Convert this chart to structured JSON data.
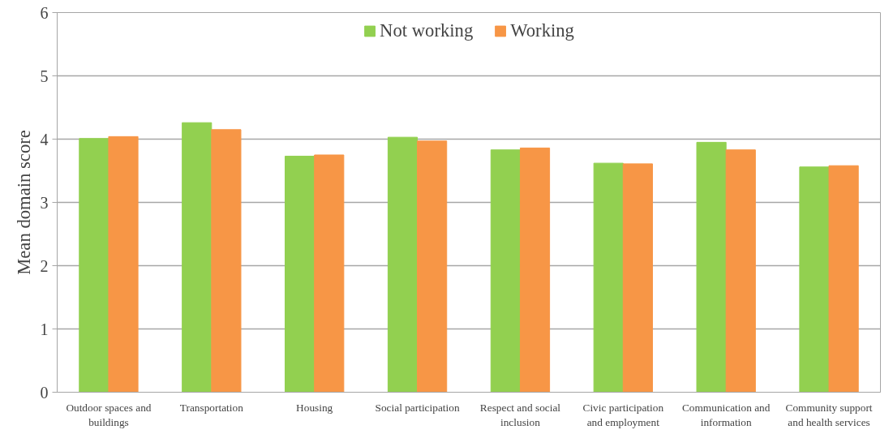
{
  "chart_data": {
    "type": "bar",
    "ylabel": "Mean domain score",
    "categories": [
      "Outdoor spaces and buildings",
      "Transportation",
      "Housing",
      "Social participation",
      "Respect and social inclusion",
      "Civic participation and employment",
      "Communication and information",
      "Community support and health services"
    ],
    "series": [
      {
        "name": "Not working",
        "color": "#92d050",
        "values": [
          4.01,
          4.26,
          3.73,
          4.03,
          3.83,
          3.62,
          3.95,
          3.56
        ]
      },
      {
        "name": "Working",
        "color": "#f79646",
        "values": [
          4.04,
          4.15,
          3.75,
          3.97,
          3.86,
          3.61,
          3.83,
          3.58
        ]
      }
    ],
    "ylim": [
      0,
      6
    ],
    "yticks": [
      0,
      1,
      2,
      3,
      4,
      5,
      6
    ],
    "grid": "y",
    "legend": "top"
  }
}
